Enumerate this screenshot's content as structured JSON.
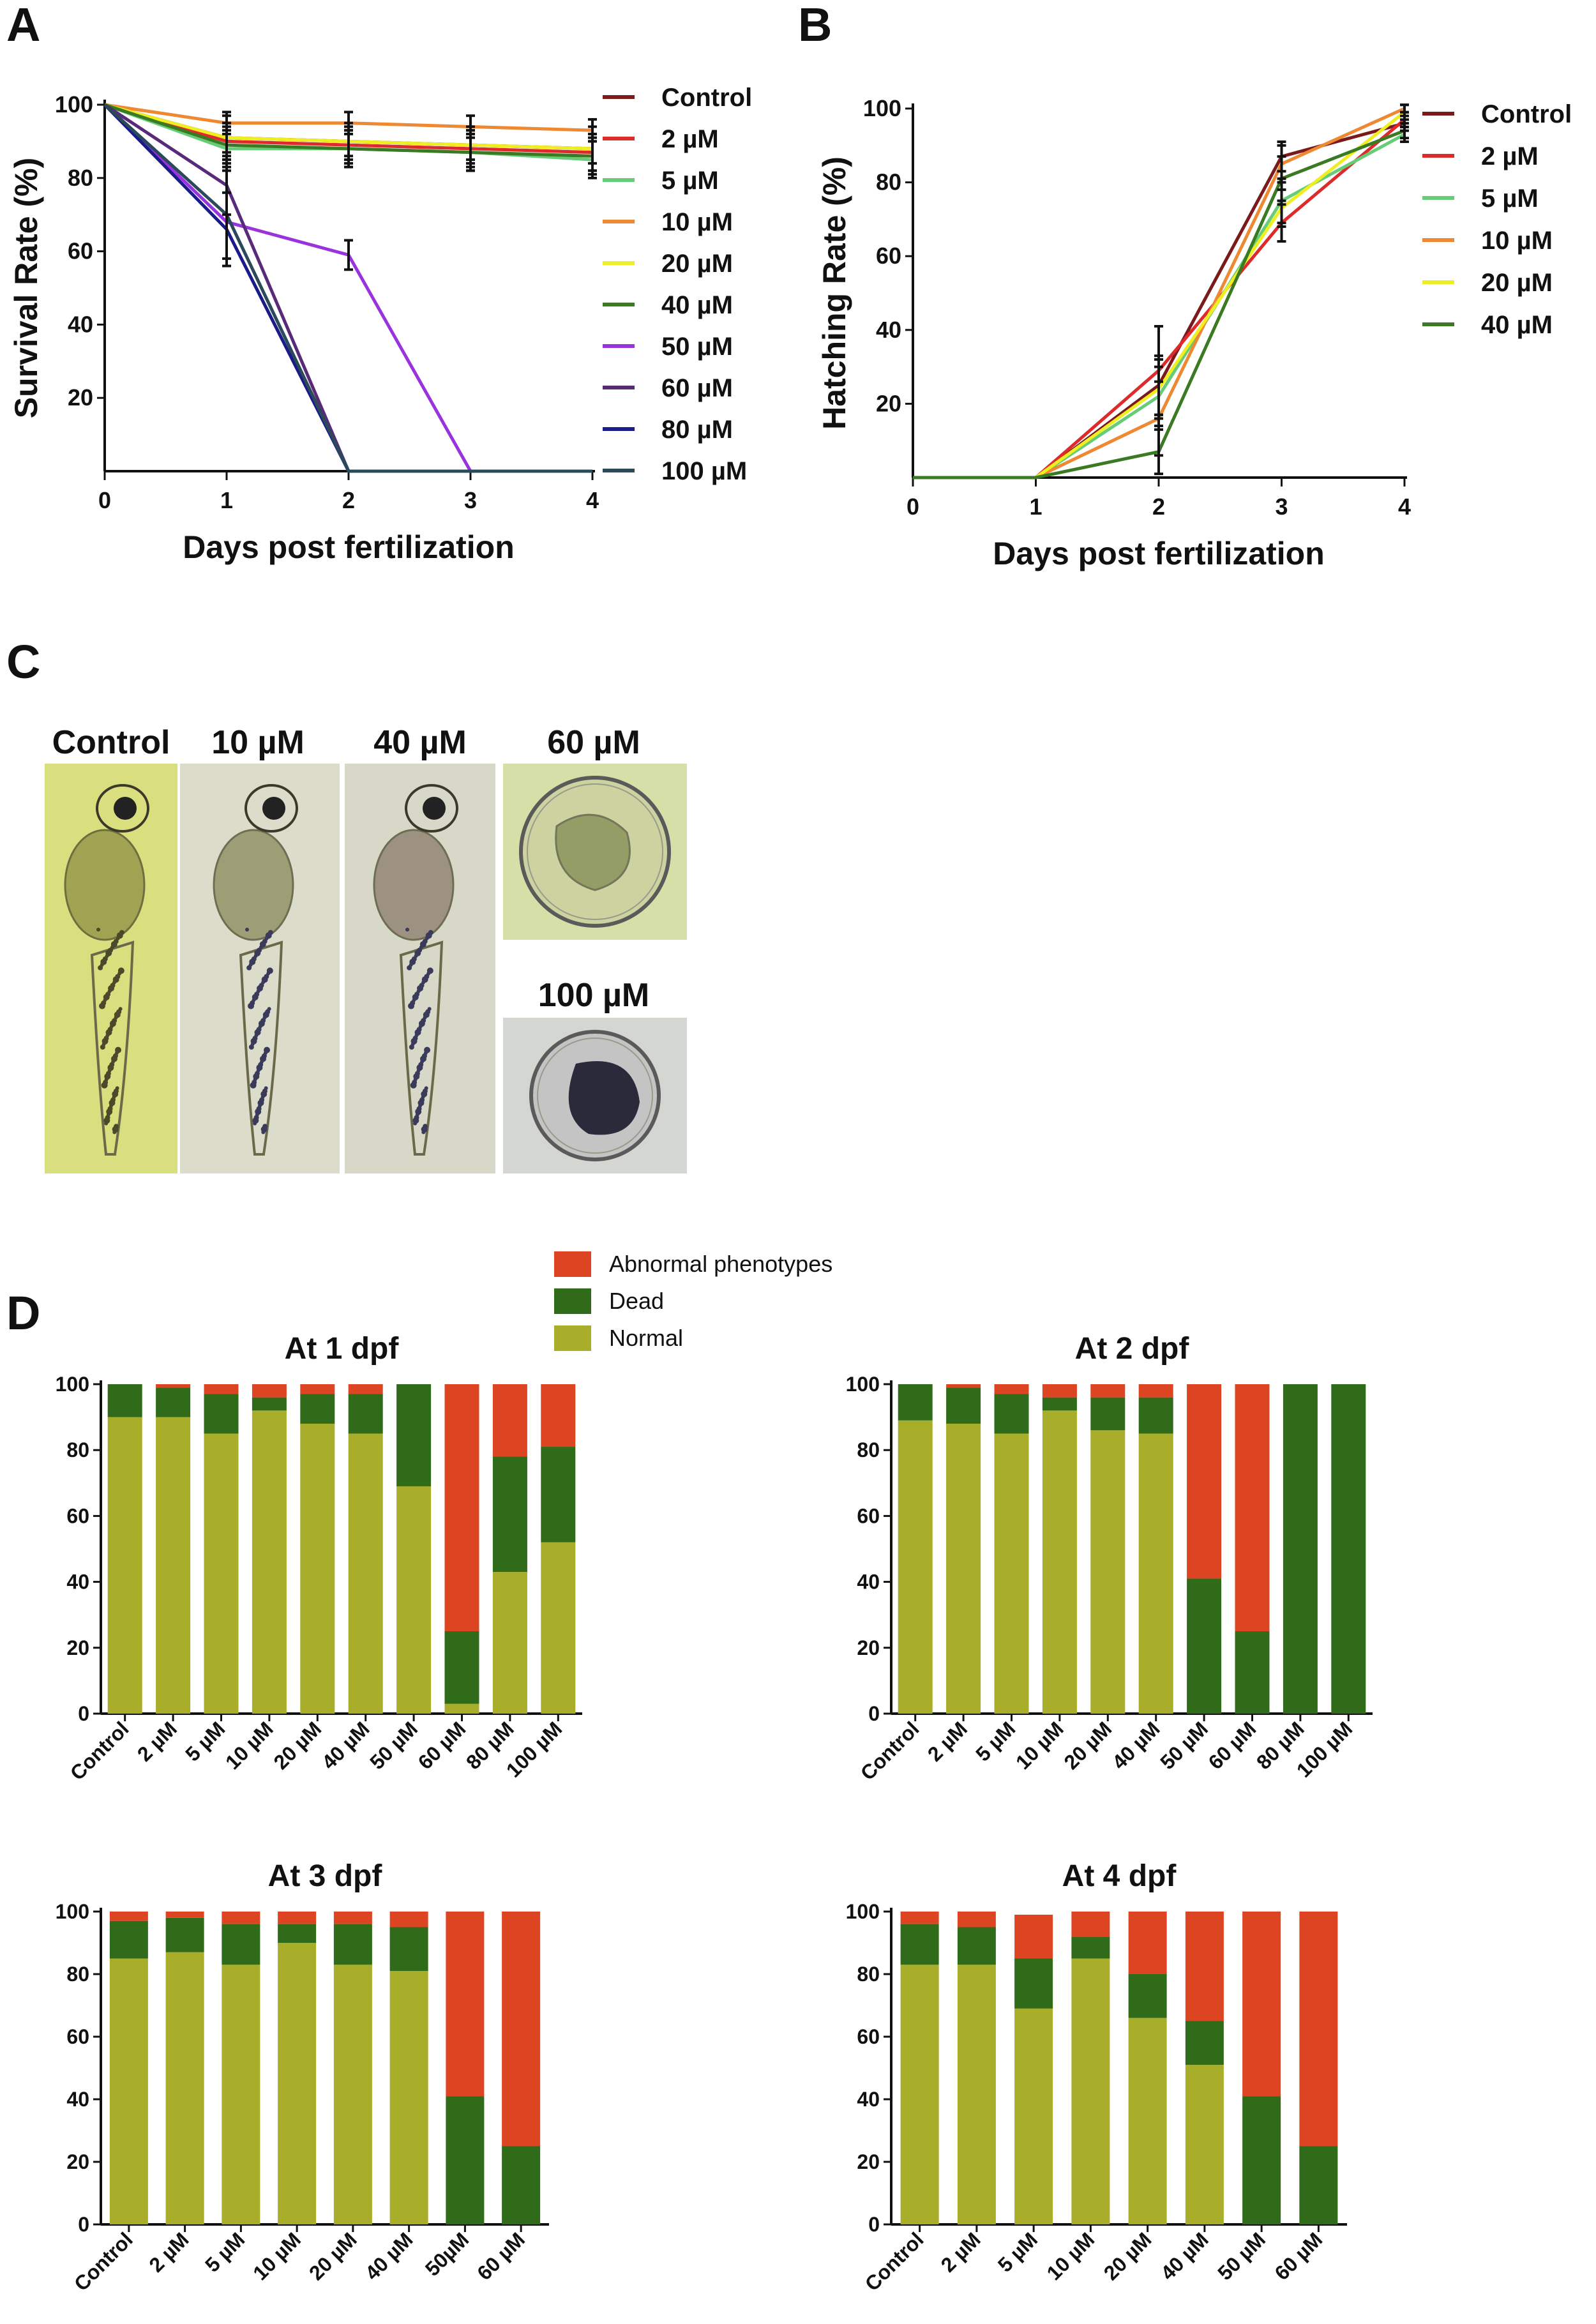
{
  "panels": {
    "A_letter": "A",
    "B_letter": "B",
    "C_letter": "C",
    "D_letter": "D"
  },
  "colors": {
    "Control": "#7b1a1a",
    "2 µM": "#dd2a2a",
    "5 µM": "#66cc77",
    "10 µM": "#ee8833",
    "20 µM": "#eeee22",
    "40 µM": "#3a7a22",
    "50 µM": "#9933dd",
    "60 µM": "#5a2a7a",
    "80 µM": "#1a1a8a",
    "100 µM": "#2a4a5a",
    "normal": "#a8ad2a",
    "dead": "#2f6b18",
    "abnormal": "#dd4422"
  },
  "photos": {
    "labels": [
      "Control",
      "10 µM",
      "40 µM",
      "60 µM",
      "100 µM"
    ]
  },
  "chart_data": [
    {
      "id": "A",
      "type": "line",
      "xlabel": "Days post fertilization",
      "ylabel": "Survival Rate (%)",
      "x": [
        0,
        1,
        2,
        3,
        4
      ],
      "xticks": [
        "0",
        "1",
        "2",
        "3",
        "4"
      ],
      "yticks": [
        "20",
        "40",
        "60",
        "80",
        "100"
      ],
      "xlim": [
        0,
        4
      ],
      "ylim": [
        0,
        100
      ],
      "legend_position": "right",
      "series": [
        {
          "name": "Control",
          "values": [
            100,
            91,
            90,
            89,
            88
          ],
          "err": [
            0,
            6,
            5,
            5,
            6
          ]
        },
        {
          "name": "2 µM",
          "values": [
            100,
            90,
            89,
            88,
            87
          ],
          "err": [
            0,
            5,
            5,
            5,
            5
          ]
        },
        {
          "name": "5 µM",
          "values": [
            100,
            88,
            88,
            87,
            85
          ],
          "err": [
            0,
            5,
            5,
            5,
            5
          ]
        },
        {
          "name": "10 µM",
          "values": [
            100,
            95,
            95,
            94,
            93
          ],
          "err": [
            0,
            3,
            3,
            3,
            3
          ]
        },
        {
          "name": "20 µM",
          "values": [
            100,
            91,
            90,
            89,
            88
          ],
          "err": [
            0,
            4,
            4,
            4,
            4
          ]
        },
        {
          "name": "40 µM",
          "values": [
            100,
            89,
            88,
            87,
            86
          ],
          "err": [
            0,
            5,
            5,
            5,
            5
          ]
        },
        {
          "name": "50 µM",
          "values": [
            100,
            68,
            59,
            0,
            null
          ],
          "err": [
            0,
            0,
            4,
            0,
            0
          ]
        },
        {
          "name": "60 µM",
          "values": [
            100,
            78,
            0,
            0,
            0
          ],
          "err": [
            0,
            8,
            0,
            0,
            0
          ]
        },
        {
          "name": "80 µM",
          "values": [
            100,
            66,
            0,
            0,
            0
          ],
          "err": [
            0,
            10,
            0,
            0,
            0
          ]
        },
        {
          "name": "100 µM",
          "values": [
            100,
            70,
            0,
            0,
            0
          ],
          "err": [
            0,
            12,
            0,
            0,
            0
          ]
        }
      ]
    },
    {
      "id": "B",
      "type": "line",
      "xlabel": "Days post fertilization",
      "ylabel": "Hatching Rate (%)",
      "x": [
        0,
        1,
        2,
        3,
        4
      ],
      "xticks": [
        "0",
        "1",
        "2",
        "3",
        "4"
      ],
      "yticks": [
        "20",
        "40",
        "60",
        "80",
        "100"
      ],
      "xlim": [
        0,
        4
      ],
      "ylim": [
        0,
        100
      ],
      "legend_position": "right",
      "series": [
        {
          "name": "Control",
          "values": [
            0,
            0,
            25,
            87,
            96
          ],
          "err": [
            0,
            0,
            8,
            4,
            2
          ]
        },
        {
          "name": "2 µM",
          "values": [
            0,
            0,
            29,
            69,
            97
          ],
          "err": [
            0,
            0,
            12,
            5,
            2
          ]
        },
        {
          "name": "5 µM",
          "values": [
            0,
            0,
            22,
            75,
            93
          ],
          "err": [
            0,
            0,
            8,
            6,
            2
          ]
        },
        {
          "name": "10 µM",
          "values": [
            0,
            0,
            16,
            85,
            100
          ],
          "err": [
            0,
            0,
            10,
            5,
            1
          ]
        },
        {
          "name": "20 µM",
          "values": [
            0,
            0,
            24,
            73,
            99
          ],
          "err": [
            0,
            0,
            8,
            5,
            2
          ]
        },
        {
          "name": "40 µM",
          "values": [
            0,
            0,
            7,
            81,
            94
          ],
          "err": [
            0,
            0,
            6,
            6,
            2
          ]
        }
      ]
    },
    {
      "id": "D1",
      "type": "bar",
      "stacked": true,
      "title": "At 1 dpf",
      "categories": [
        "Control",
        "2 µM",
        "5 µM",
        "10 µM",
        "20 µM",
        "40 µM",
        "50 µM",
        "60 µM",
        "80 µM",
        "100 µM"
      ],
      "yticks": [
        "0",
        "20",
        "40",
        "60",
        "80",
        "100"
      ],
      "ylim": [
        0,
        100
      ],
      "series": [
        {
          "name": "Normal",
          "values": [
            90,
            90,
            85,
            92,
            88,
            85,
            69,
            3,
            43,
            52
          ]
        },
        {
          "name": "Dead",
          "values": [
            10,
            9,
            12,
            4,
            9,
            12,
            31,
            22,
            35,
            29
          ]
        },
        {
          "name": "Abnormal phenotypes",
          "values": [
            0,
            1,
            3,
            4,
            3,
            3,
            0,
            75,
            22,
            19
          ]
        }
      ]
    },
    {
      "id": "D2",
      "type": "bar",
      "stacked": true,
      "title": "At 2 dpf",
      "categories": [
        "Control",
        "2 µM",
        "5 µM",
        "10 µM",
        "20 µM",
        "40 µM",
        "50 µM",
        "60 µM",
        "80 µM",
        "100 µM"
      ],
      "yticks": [
        "0",
        "20",
        "40",
        "60",
        "80",
        "100"
      ],
      "ylim": [
        0,
        100
      ],
      "series": [
        {
          "name": "Normal",
          "values": [
            89,
            88,
            85,
            92,
            86,
            85,
            0,
            0,
            0,
            0
          ]
        },
        {
          "name": "Dead",
          "values": [
            11,
            11,
            12,
            4,
            10,
            11,
            41,
            25,
            100,
            100
          ]
        },
        {
          "name": "Abnormal phenotypes",
          "values": [
            0,
            1,
            3,
            4,
            4,
            4,
            59,
            75,
            0,
            0
          ]
        }
      ]
    },
    {
      "id": "D3",
      "type": "bar",
      "stacked": true,
      "title": "At 3 dpf",
      "categories": [
        "Control",
        "2 µM",
        "5 µM",
        "10 µM",
        "20 µM",
        "40 µM",
        "50µM",
        "60 µM"
      ],
      "yticks": [
        "0",
        "20",
        "40",
        "60",
        "80",
        "100"
      ],
      "ylim": [
        0,
        100
      ],
      "series": [
        {
          "name": "Normal",
          "values": [
            85,
            87,
            83,
            90,
            83,
            81,
            0,
            0
          ]
        },
        {
          "name": "Dead",
          "values": [
            12,
            11,
            13,
            6,
            13,
            14,
            41,
            25
          ]
        },
        {
          "name": "Abnormal phenotypes",
          "values": [
            3,
            2,
            4,
            4,
            4,
            5,
            59,
            75
          ]
        }
      ]
    },
    {
      "id": "D4",
      "type": "bar",
      "stacked": true,
      "title": "At 4 dpf",
      "categories": [
        "Control",
        "2 µM",
        "5 µM",
        "10 µM",
        "20 µM",
        "40 µM",
        "50 µM",
        "60 µM"
      ],
      "yticks": [
        "0",
        "20",
        "40",
        "60",
        "80",
        "100"
      ],
      "ylim": [
        0,
        100
      ],
      "series": [
        {
          "name": "Normal",
          "values": [
            83,
            83,
            69,
            85,
            66,
            51,
            0,
            0
          ]
        },
        {
          "name": "Dead",
          "values": [
            13,
            12,
            16,
            7,
            14,
            14,
            41,
            25
          ]
        },
        {
          "name": "Abnormal phenotypes",
          "values": [
            4,
            5,
            14,
            8,
            20,
            35,
            59,
            75
          ]
        }
      ]
    }
  ],
  "d_legend": {
    "items": [
      "Abnormal phenotypes",
      "Dead",
      "Normal"
    ]
  }
}
